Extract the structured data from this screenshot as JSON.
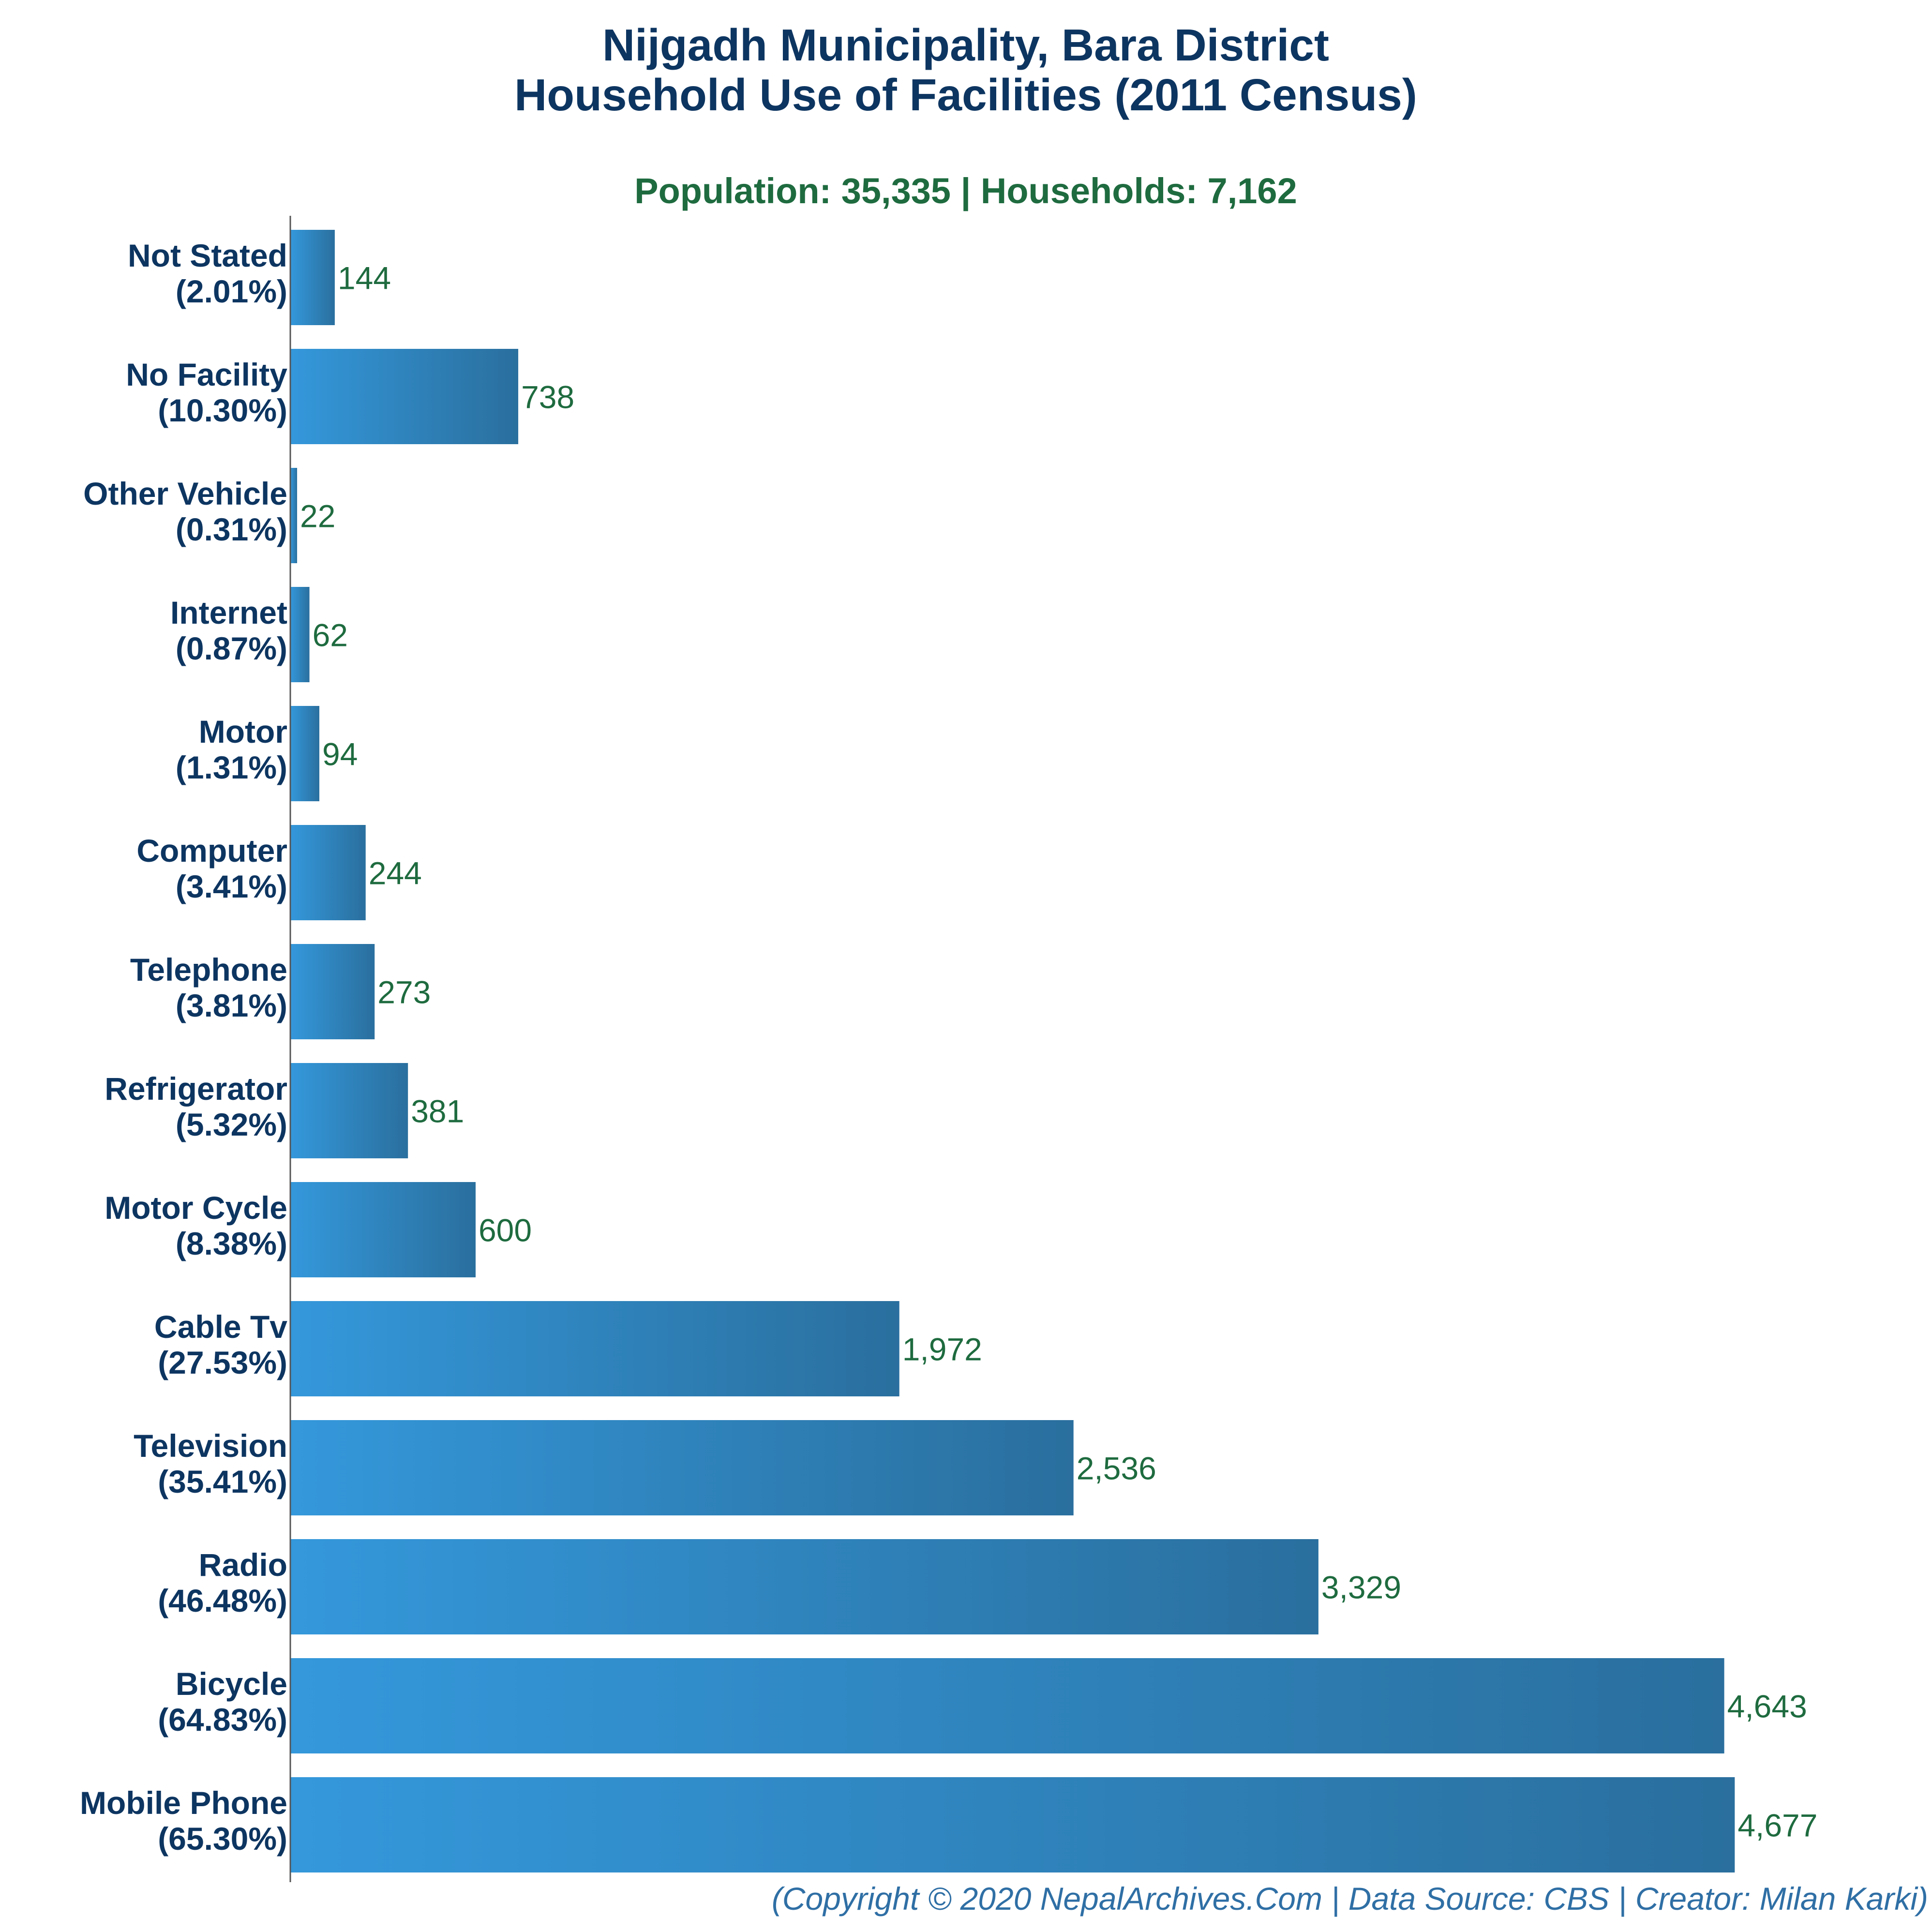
{
  "chart_data": {
    "type": "bar",
    "orientation": "horizontal",
    "title": "Nijgadh Municipality, Bara District",
    "title_line2": "Household Use of Facilities (2011 Census)",
    "subtitle": "Population: 35,335 | Households: 7,162",
    "categories": [
      "Not Stated",
      "No Facility",
      "Other Vehicle",
      "Internet",
      "Motor",
      "Computer",
      "Telephone",
      "Refrigerator",
      "Motor Cycle",
      "Cable Tv",
      "Television",
      "Radio",
      "Bicycle",
      "Mobile Phone"
    ],
    "percent_labels": [
      "(2.01%)",
      "(10.30%)",
      "(0.31%)",
      "(0.87%)",
      "(1.31%)",
      "(3.41%)",
      "(3.81%)",
      "(5.32%)",
      "(8.38%)",
      "(27.53%)",
      "(35.41%)",
      "(46.48%)",
      "(64.83%)",
      "(65.30%)"
    ],
    "values": [
      144,
      738,
      22,
      62,
      94,
      244,
      273,
      381,
      600,
      1972,
      2536,
      3329,
      4643,
      4677
    ],
    "value_labels": [
      "144",
      "738",
      "22",
      "62",
      "94",
      "244",
      "273",
      "381",
      "600",
      "1,972",
      "2,536",
      "3,329",
      "4,643",
      "4,677"
    ],
    "xlim": [
      0,
      4700
    ],
    "grid": false,
    "legend": "none",
    "footer": "(Copyright © 2020 NepalArchives.Com | Data Source: CBS | Creator: Milan Karki)",
    "colors": {
      "bar_light": "#3498db",
      "bar_dark": "#2a6f9e",
      "title": "#0d3561",
      "subtitle": "#1e6b3f",
      "value_text": "#1e6b3f",
      "footer": "#2f6fa5"
    }
  }
}
